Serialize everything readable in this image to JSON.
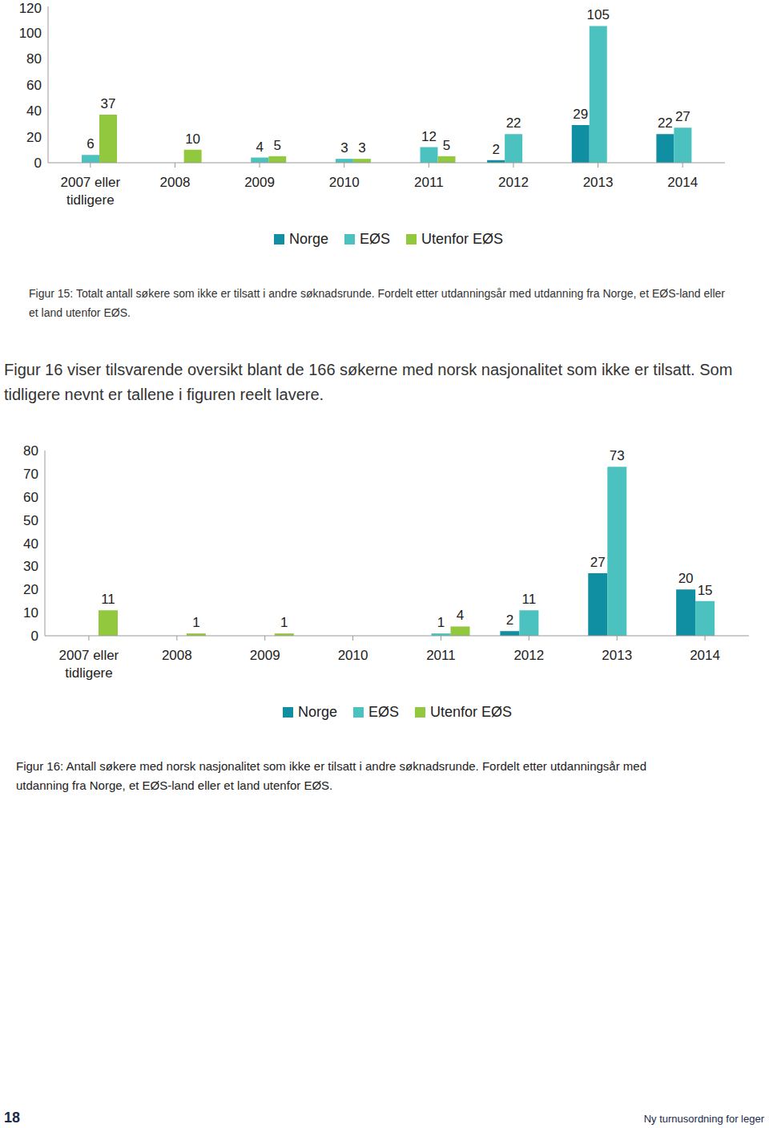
{
  "chart_data": [
    {
      "type": "bar",
      "categories": [
        "2007 eller tidligere",
        "2008",
        "2009",
        "2010",
        "2011",
        "2012",
        "2013",
        "2014"
      ],
      "series": [
        {
          "name": "Norge",
          "color": "#108ea2",
          "values": [
            null,
            null,
            null,
            null,
            null,
            2,
            29,
            22
          ]
        },
        {
          "name": "EØS",
          "color": "#4cc2c0",
          "values": [
            6,
            null,
            4,
            3,
            12,
            22,
            105,
            27
          ]
        },
        {
          "name": "Utenfor EØS",
          "color": "#92c83e",
          "values": [
            37,
            10,
            5,
            3,
            5,
            null,
            null,
            null
          ]
        }
      ],
      "ylim": [
        0,
        120
      ],
      "yticks": [
        0,
        20,
        40,
        60,
        80,
        100,
        120
      ],
      "grid": false,
      "legend": "bottom",
      "data_labels": true,
      "caption": "Figur 15: Totalt antall søkere som ikke er tilsatt i andre søknadsrunde. Fordelt etter utdanningsår med utdanning fra Norge, et EØS-land eller et land utenfor EØS."
    },
    {
      "type": "bar",
      "categories": [
        "2007 eller tidligere",
        "2008",
        "2009",
        "2010",
        "2011",
        "2012",
        "2013",
        "2014"
      ],
      "series": [
        {
          "name": "Norge",
          "color": "#108ea2",
          "values": [
            null,
            null,
            null,
            null,
            null,
            2,
            27,
            20
          ]
        },
        {
          "name": "EØS",
          "color": "#4cc2c0",
          "values": [
            null,
            null,
            null,
            null,
            1,
            11,
            73,
            15
          ]
        },
        {
          "name": "Utenfor EØS",
          "color": "#92c83e",
          "values": [
            11,
            1,
            1,
            null,
            4,
            null,
            null,
            null
          ]
        }
      ],
      "ylim": [
        0,
        80
      ],
      "yticks": [
        0,
        10,
        20,
        30,
        40,
        50,
        60,
        70,
        80
      ],
      "grid": false,
      "legend": "bottom",
      "data_labels": true,
      "caption": "Figur 16: Antall søkere med norsk nasjonalitet som ikke er tilsatt i andre søknadsrunde. Fordelt etter utdanningsår med utdanning fra Norge, et EØS-land eller et land utenfor EØS."
    }
  ],
  "paragraph": "Figur 16 viser tilsvarende oversikt blant de 166 søkerne med norsk nasjonalitet som ikke er tilsatt. Som tidligere nevnt er tallene i figuren reelt lavere.",
  "footer": {
    "page_number": "18",
    "title": "Ny turnusordning for leger"
  }
}
